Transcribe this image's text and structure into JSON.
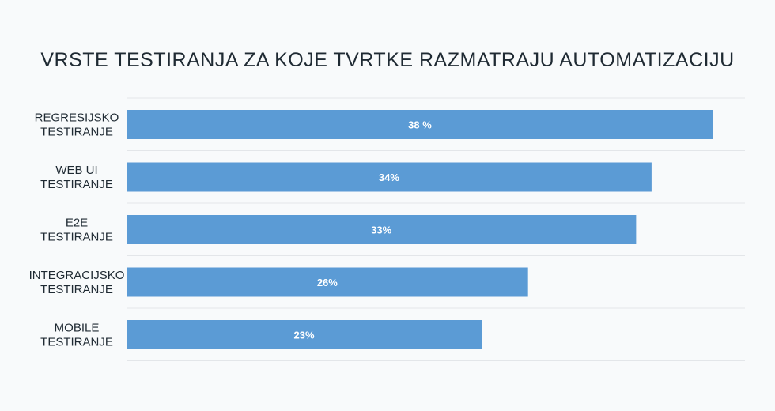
{
  "chart_data": {
    "type": "bar",
    "orientation": "horizontal",
    "title": "VRSTE TESTIRANJA ZA KOJE TVRTKE RAZMATRAJU AUTOMATIZACIJU",
    "categories": [
      [
        "REGRESIJSKO",
        "TESTIRANJE"
      ],
      [
        "WEB UI",
        "TESTIRANJE"
      ],
      [
        "E2E",
        "TESTIRANJE"
      ],
      [
        "INTEGRACIJSKO",
        "TESTIRANJE"
      ],
      [
        "MOBILE",
        "TESTIRANJE"
      ]
    ],
    "values": [
      38,
      34,
      33,
      26,
      23
    ],
    "value_labels": [
      "38 %",
      "34%",
      "33%",
      "26%",
      "23%"
    ],
    "xlim": [
      0,
      38
    ],
    "grid": true,
    "bar_color": "#5b9bd5",
    "grid_color": "#e3e6e9"
  }
}
